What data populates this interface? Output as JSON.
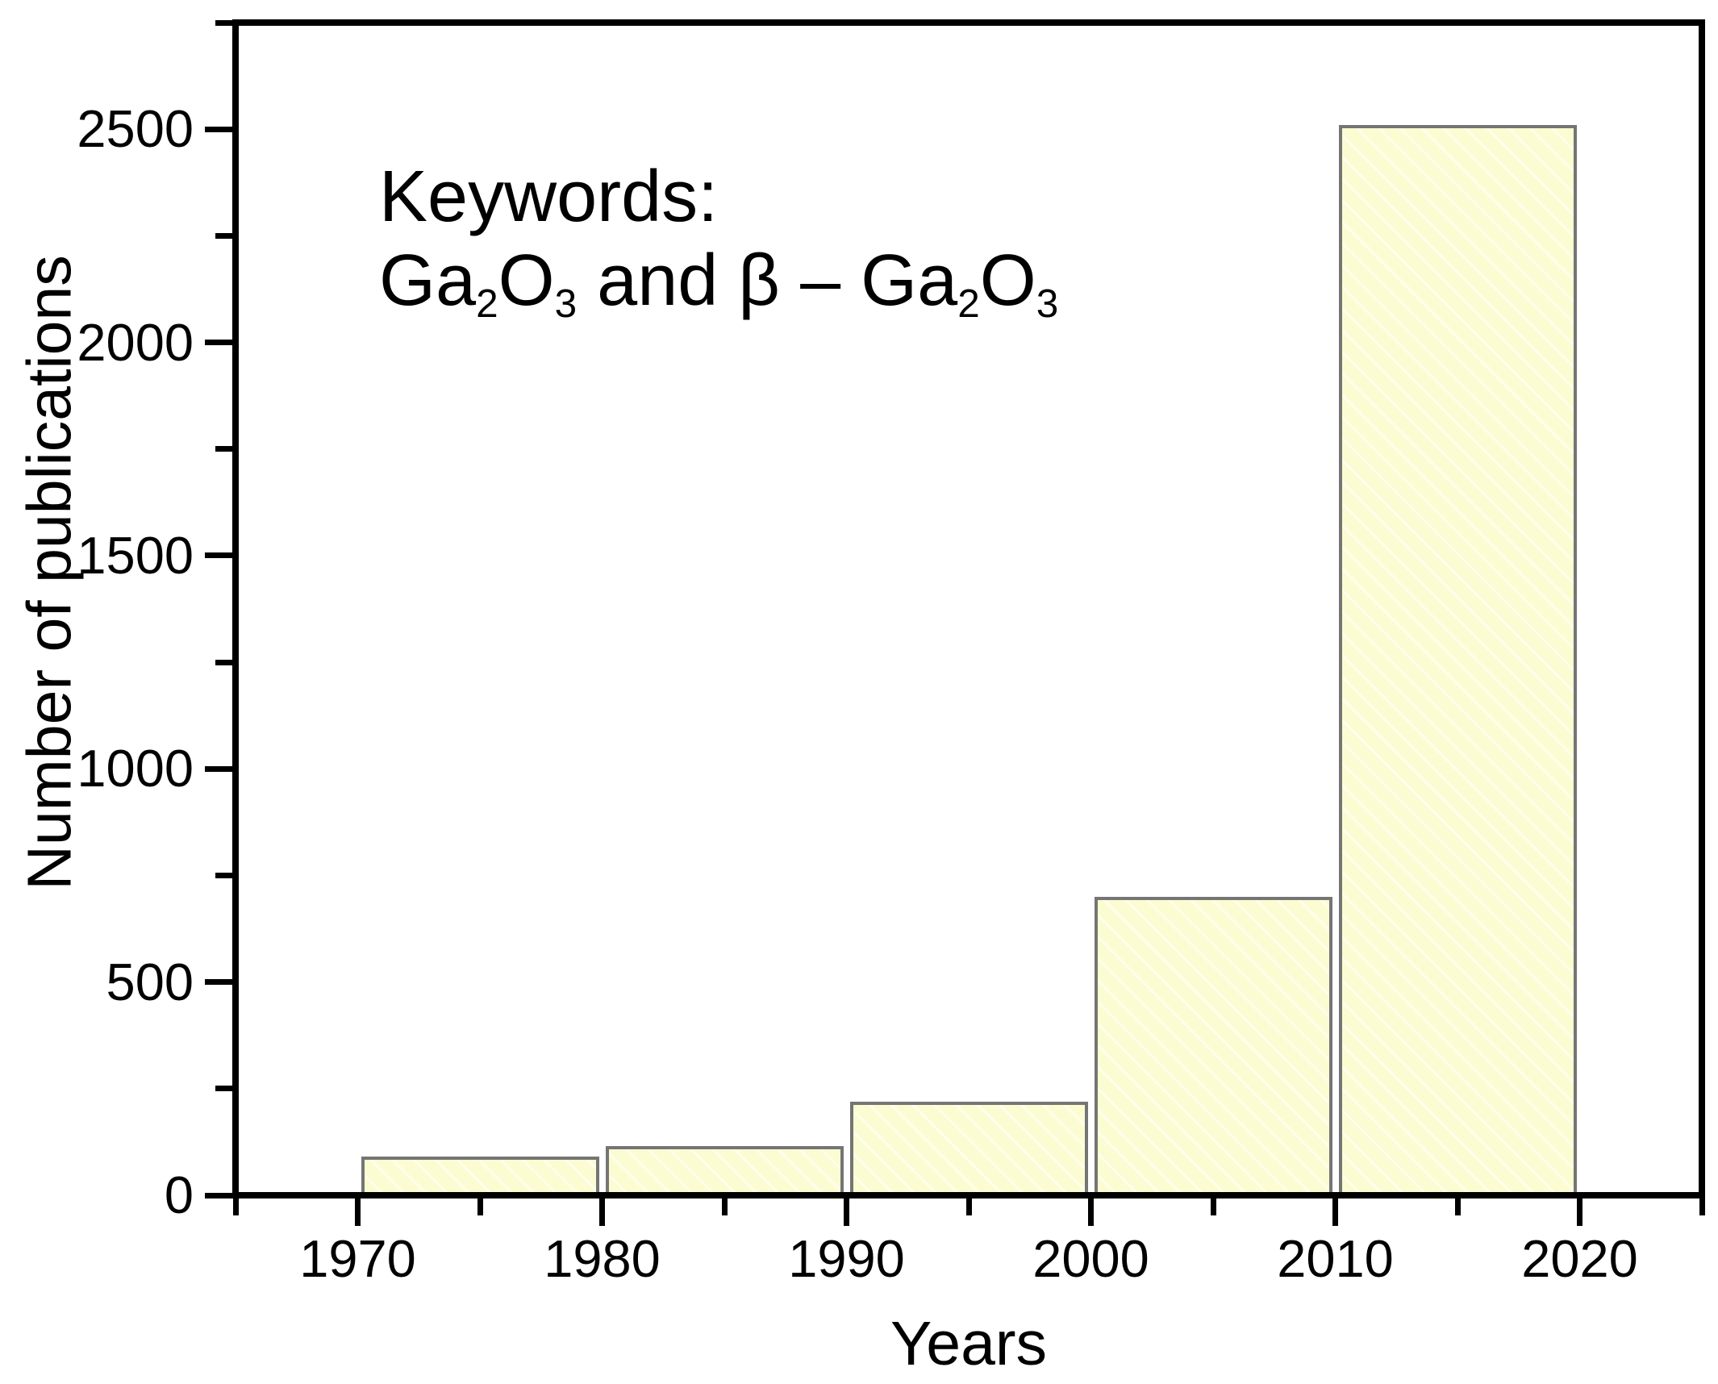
{
  "chart_data": {
    "type": "bar",
    "title": "",
    "annotation_line1": "Keywords:",
    "annotation_line2_segments": [
      {
        "t": "Ga"
      },
      {
        "t": "2",
        "sub": true
      },
      {
        "t": "O"
      },
      {
        "t": "3",
        "sub": true
      },
      {
        "t": " and β – Ga"
      },
      {
        "t": "2",
        "sub": true
      },
      {
        "t": "O"
      },
      {
        "t": "3",
        "sub": true
      }
    ],
    "categories": [
      "1970-1980",
      "1980-1990",
      "1990-2000",
      "2000-2010",
      "2010-2020"
    ],
    "values": [
      90,
      115,
      220,
      700,
      2510
    ],
    "bins": [
      [
        1970,
        1980
      ],
      [
        1980,
        1990
      ],
      [
        1990,
        2000
      ],
      [
        2000,
        2010
      ],
      [
        2010,
        2020
      ]
    ],
    "xlabel": "Years",
    "ylabel": "Number of publications",
    "xlim": [
      1965,
      2025
    ],
    "ylim": [
      0,
      2750
    ],
    "x_major_ticks": [
      1970,
      1980,
      1990,
      2000,
      2010,
      2020
    ],
    "x_minor_ticks": [
      1965,
      1975,
      1985,
      1995,
      2005,
      2015,
      2025
    ],
    "y_major_ticks": [
      0,
      500,
      1000,
      1500,
      2000,
      2500
    ],
    "y_minor_ticks": [
      250,
      750,
      1250,
      1750,
      2250,
      2750
    ],
    "legend": "none",
    "grid": "off",
    "colors": {
      "bar_fill": "#FCFCD2",
      "bar_hatch": "rgba(255,255,255,0.55)",
      "bar_edge": "#757575",
      "axis": "#000000",
      "text": "#000000"
    }
  }
}
